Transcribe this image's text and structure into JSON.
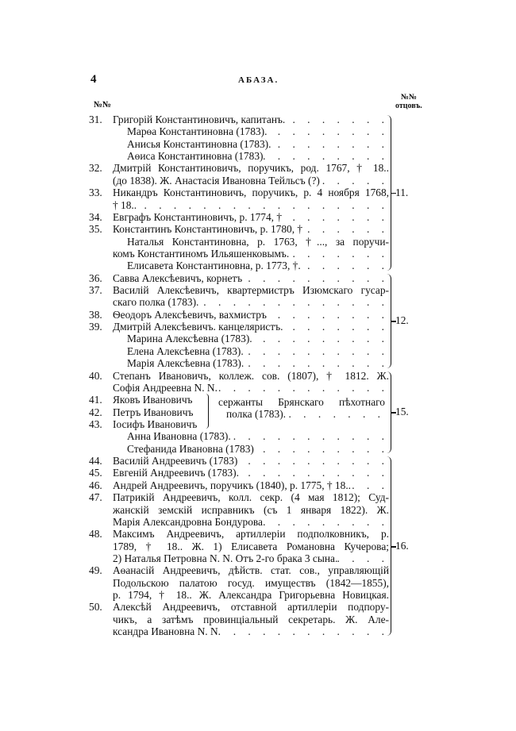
{
  "header": {
    "page_number": "4",
    "running_title": "АБАЗА.",
    "col_left": "№№",
    "col_right_top": "№№",
    "col_right_bottom": "отцовъ."
  },
  "lines": [
    {
      "num": "31.",
      "text": "Григорій Константиновичъ, капитанъ.",
      "indent": 0,
      "leader": true
    },
    {
      "num": "",
      "text": "Марѳа Константиновна (1783).",
      "indent": 2,
      "leader": true
    },
    {
      "num": "",
      "text": "Анисья Константиновна (1783).",
      "indent": 2,
      "leader": true
    },
    {
      "num": "",
      "text": "Аѳиса Константиновна (1783)",
      "indent": 2,
      "leader": true
    },
    {
      "num": "32.",
      "text": "Дмитрій Константиновичъ, поручикъ, род. 1767, † 18..",
      "indent": 0,
      "leader": false
    },
    {
      "num": "",
      "text": "(до 1838). Ж. Анастасія Ивановна Тейльсъ (?)",
      "indent": 1,
      "leader": true
    },
    {
      "num": "33.",
      "text": "Никандръ Константиновичъ, поручикъ, р. 4 ноября 1768,",
      "indent": 0,
      "leader": false
    },
    {
      "num": "",
      "text": "† 18..",
      "indent": 1,
      "leader": true
    },
    {
      "num": "34.",
      "text": "Евграфъ Константиновичъ, р. 1774, †",
      "indent": 0,
      "leader": true
    },
    {
      "num": "35.",
      "text": "Константинъ Константиновичъ, р. 1780, †",
      "indent": 0,
      "leader": true
    },
    {
      "num": "",
      "text": "Наталья Константиновна, р. 1763, †..., за поручи-",
      "indent": 2,
      "leader": false
    },
    {
      "num": "",
      "text": "комъ Константиномъ Ильяшенковымъ.",
      "indent": 1,
      "leader": true
    },
    {
      "num": "",
      "text": "Елисавета Константиновна, р. 1773, †.",
      "indent": 2,
      "leader": true
    },
    {
      "num": "36.",
      "text": "Савва Алексѣевичъ, корнетъ",
      "indent": 0,
      "leader": true
    },
    {
      "num": "37.",
      "text": "Василій Алексѣевичъ, квартермистръ Изюмскаго гусар-",
      "indent": 0,
      "leader": false
    },
    {
      "num": "",
      "text": "скаго полка (1783).",
      "indent": 1,
      "leader": true
    },
    {
      "num": "38.",
      "text": "Ѳеодоръ Алексѣевичъ, вахмистръ",
      "indent": 0,
      "leader": true
    },
    {
      "num": "39.",
      "text": "Дмитрій Алексѣевичъ. канцеляристъ.",
      "indent": 0,
      "leader": true
    },
    {
      "num": "",
      "text": "Марина Алексѣевна (1783).",
      "indent": 2,
      "leader": true
    },
    {
      "num": "",
      "text": "Елена Алексѣевна (1783).",
      "indent": 2,
      "leader": true
    },
    {
      "num": "",
      "text": "Марія Алексѣевна (1783).",
      "indent": 2,
      "leader": true
    },
    {
      "num": "40.",
      "text": "Степанъ Ивановичъ, коллеж. сов. (1807), † 1812. Ж.",
      "indent": 0,
      "leader": false
    },
    {
      "num": "",
      "text": "Софія Андреевна N. N.",
      "indent": 1,
      "leader": true
    },
    {
      "num": "41.",
      "text": "Яковъ Ивановичъ",
      "indent": 0,
      "leader": false,
      "group": true
    },
    {
      "num": "42.",
      "text": "Петръ Ивановичъ",
      "indent": 0,
      "leader": false,
      "group": true
    },
    {
      "num": "43.",
      "text": "Іосифъ Ивановичъ",
      "indent": 0,
      "leader": false,
      "group": true
    },
    {
      "num": "",
      "text": "Анна Ивановна (1783).",
      "indent": 2,
      "leader": true
    },
    {
      "num": "",
      "text": "Стефанида Ивановна (1783)",
      "indent": 2,
      "leader": true
    },
    {
      "num": "44.",
      "text": "Василій Андреевичъ (1783)",
      "indent": 0,
      "leader": true
    },
    {
      "num": "45.",
      "text": "Евгеній Андреевичъ (1783).",
      "indent": 0,
      "leader": true
    },
    {
      "num": "46.",
      "text": "Андрей Андреевичъ, поручикъ (1840), р. 1775, † 18..",
      "indent": 0,
      "leader": true
    },
    {
      "num": "47.",
      "text": "Патрикій Андреевичъ, колл. секр. (4 мая 1812); Суд-",
      "indent": 0,
      "leader": false
    },
    {
      "num": "",
      "text": "жанскій земскій исправникъ (съ 1 января 1822). Ж.",
      "indent": 1,
      "leader": false
    },
    {
      "num": "",
      "text": "Марія Александровна Бондурова",
      "indent": 1,
      "leader": true
    },
    {
      "num": "48.",
      "text": "Максимъ Андреевичъ, артиллеріи подполковникъ, р.",
      "indent": 0,
      "leader": false
    },
    {
      "num": "",
      "text": "1789, † 18.. Ж. 1) Елисавета Романовна Кучерова;",
      "indent": 1,
      "leader": false
    },
    {
      "num": "",
      "text": "2) Наталья Петровна N. N. Отъ 2-го брака 3 сына.",
      "indent": 1,
      "leader": true
    },
    {
      "num": "49.",
      "text": "Аѳанасій Андреевичъ, дѣйств. стат. сов., управляющій",
      "indent": 0,
      "leader": false
    },
    {
      "num": "",
      "text": "Подольскою палатою госуд. имуществъ (1842—1855),",
      "indent": 1,
      "leader": false
    },
    {
      "num": "",
      "text": "р. 1794, † 18.. Ж. Александра Григорьевна Новицкая.",
      "indent": 1,
      "leader": false
    },
    {
      "num": "50.",
      "text": "Алексѣй Андреевичъ, отставной артиллеріи подпору-",
      "indent": 0,
      "leader": false
    },
    {
      "num": "",
      "text": "чикъ, а затѣмъ провинціальный секретарь. Ж. Але-",
      "indent": 1,
      "leader": false
    },
    {
      "num": "",
      "text": "ксандра Ивановна N. N.",
      "indent": 1,
      "leader": true
    }
  ],
  "group_note": {
    "line1": "сержанты Брянскаго пѣхотнаго",
    "line2": "полка (1783)."
  },
  "fathers": [
    {
      "label": "11.",
      "first": 0,
      "last": 12
    },
    {
      "label": "12.",
      "first": 13,
      "last": 20
    },
    {
      "label": "15.",
      "first": 21,
      "last": 27
    },
    {
      "label": "16.",
      "first": 28,
      "last": 42
    }
  ]
}
